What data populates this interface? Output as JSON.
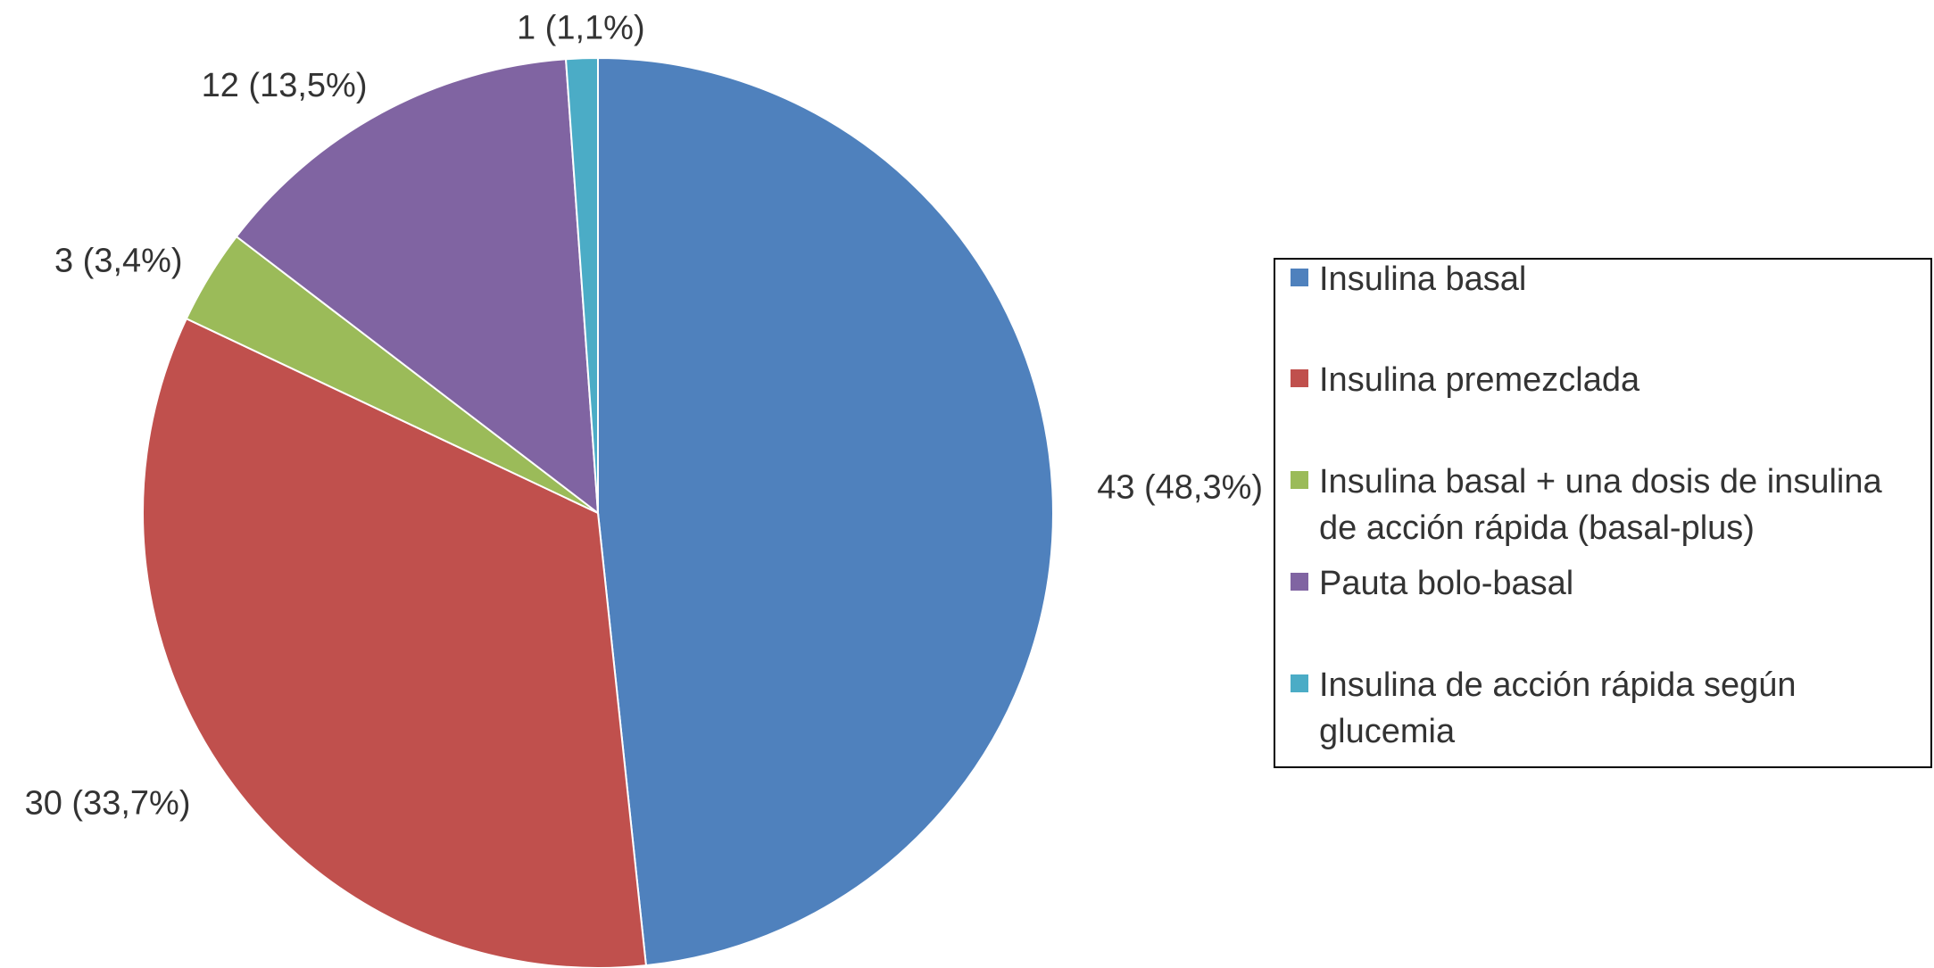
{
  "chart_data": {
    "type": "pie",
    "title": "",
    "series": [
      {
        "values": [
          43,
          30,
          3,
          12,
          1
        ],
        "percent_labels": [
          "43 (48,3%)",
          "30 (33,7%)",
          "3 (3,4%)",
          "12 (13,5%)",
          "1 (1,1%)"
        ]
      }
    ],
    "categories": [
      "Insulina basal",
      "Insulina premezclada",
      "Insulina basal + una dosis de insulina de acción rápida (basal-plus)",
      "Pauta bolo-basal",
      "Insulina de acción rápida según glucemia"
    ],
    "legend_lines": [
      [
        "Insulina basal"
      ],
      [
        "Insulina premezclada"
      ],
      [
        "Insulina basal + una dosis de insulina",
        "de acción rápida (basal-plus)"
      ],
      [
        "Pauta bolo-basal"
      ],
      [
        "Insulina de acción rápida según",
        "glucemia"
      ]
    ],
    "colors": [
      "#4f81bd",
      "#c0504d",
      "#9bbb59",
      "#8064a2",
      "#4bacc6"
    ],
    "legend_position": "right",
    "start_angle": "top, clockwise"
  }
}
